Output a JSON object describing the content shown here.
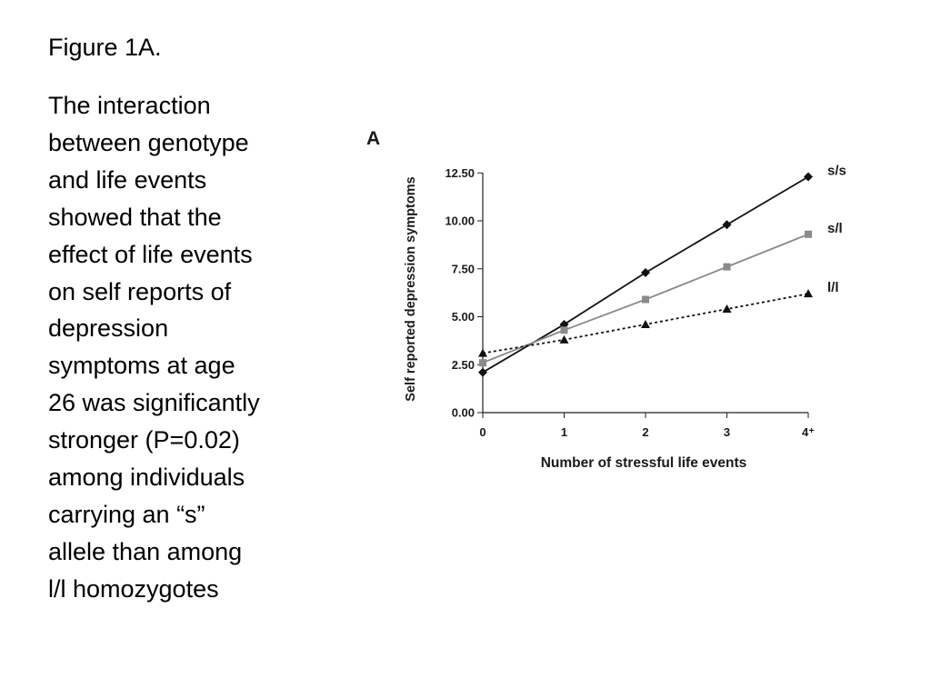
{
  "slide": {
    "title": "Figure 1A.",
    "body_lines": [
      "The interaction",
      "between genotype",
      "and life events",
      "showed that the",
      "effect of life events",
      "on self reports of",
      "depression",
      "symptoms at age",
      "26 was significantly",
      "stronger (P=0.02)",
      "among individuals",
      "carrying an “s”",
      "allele than among",
      "l/l homozygotes"
    ]
  },
  "chart_data": {
    "type": "line",
    "panel_label": "A",
    "xlabel": "Number of stressful life events",
    "ylabel": "Self reported depression symptoms",
    "x": [
      0,
      1,
      2,
      3,
      4
    ],
    "x_tick_labels": [
      "0",
      "1",
      "2",
      "3",
      "4⁺"
    ],
    "y_ticks": [
      "0.00",
      "2.50",
      "5.00",
      "7.50",
      "10.00",
      "12.50"
    ],
    "ylim": [
      0,
      12.5
    ],
    "grid": false,
    "legend": "inline labels at right end of lines",
    "series": [
      {
        "name": "s/s",
        "values": [
          2.1,
          4.6,
          7.3,
          9.8,
          12.3
        ],
        "color": "#111111",
        "marker": "diamond",
        "line": "solid"
      },
      {
        "name": "s/l",
        "values": [
          2.6,
          4.3,
          5.9,
          7.6,
          9.3
        ],
        "color": "#8a8a8a",
        "marker": "square",
        "line": "solid"
      },
      {
        "name": "l/l",
        "values": [
          3.1,
          3.8,
          4.6,
          5.4,
          6.2
        ],
        "color": "#111111",
        "marker": "triangle",
        "line": "dotted"
      }
    ]
  }
}
